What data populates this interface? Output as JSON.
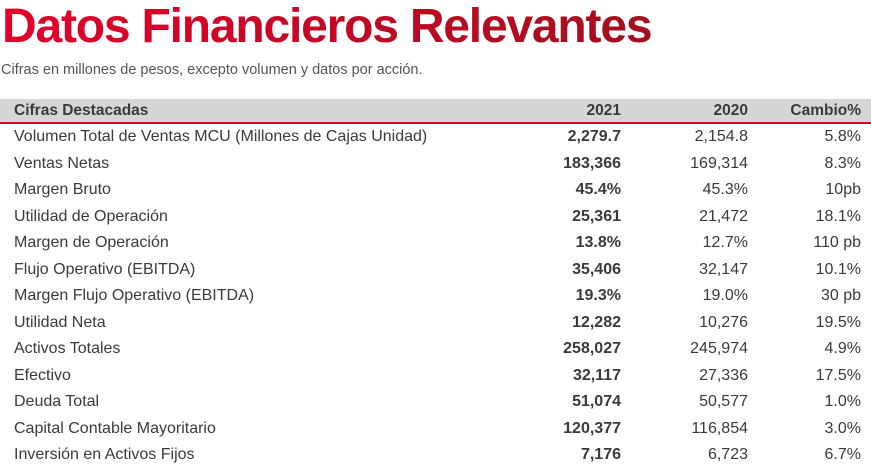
{
  "title": "Datos Financieros Relevantes",
  "subtitle": "Cifras en millones de pesos, excepto volumen y datos por acción.",
  "colors": {
    "title_gradient_start": "#e4002b",
    "title_gradient_end": "#a3101f",
    "header_bg": "#d6d6d6",
    "accent_line": "#c8102e"
  },
  "table": {
    "headers": {
      "label": "Cifras Destacadas",
      "y2021": "2021",
      "y2020": "2020",
      "change": "Cambio%"
    },
    "rows": [
      {
        "label": "Volumen Total de Ventas MCU (Millones de Cajas Unidad)",
        "y2021": "2,279.7",
        "y2020": "2,154.8",
        "change": "5.8%"
      },
      {
        "label": "Ventas Netas",
        "y2021": "183,366",
        "y2020": "169,314",
        "change": "8.3%"
      },
      {
        "label": "Margen Bruto",
        "y2021": "45.4%",
        "y2020": "45.3%",
        "change": "10pb"
      },
      {
        "label": "Utilidad de Operación",
        "y2021": "25,361",
        "y2020": "21,472",
        "change": "18.1%"
      },
      {
        "label": "Margen de Operación",
        "y2021": "13.8%",
        "y2020": "12.7%",
        "change": "110 pb"
      },
      {
        "label": "Flujo Operativo (EBITDA)",
        "y2021": "35,406",
        "y2020": "32,147",
        "change": "10.1%"
      },
      {
        "label": "Margen Flujo Operativo (EBITDA)",
        "y2021": "19.3%",
        "y2020": "19.0%",
        "change": "30 pb"
      },
      {
        "label": "Utilidad Neta",
        "y2021": "12,282",
        "y2020": "10,276",
        "change": "19.5%"
      },
      {
        "label": "Activos Totales",
        "y2021": "258,027",
        "y2020": "245,974",
        "change": "4.9%"
      },
      {
        "label": "Efectivo",
        "y2021": "32,117",
        "y2020": "27,336",
        "change": "17.5%"
      },
      {
        "label": "Deuda Total",
        "y2021": "51,074",
        "y2020": "50,577",
        "change": "1.0%"
      },
      {
        "label": "Capital Contable Mayoritario",
        "y2021": "120,377",
        "y2020": "116,854",
        "change": "3.0%"
      },
      {
        "label": "Inversión en Activos Fijos",
        "y2021": "7,176",
        "y2020": "6,723",
        "change": "6.7%"
      }
    ]
  }
}
